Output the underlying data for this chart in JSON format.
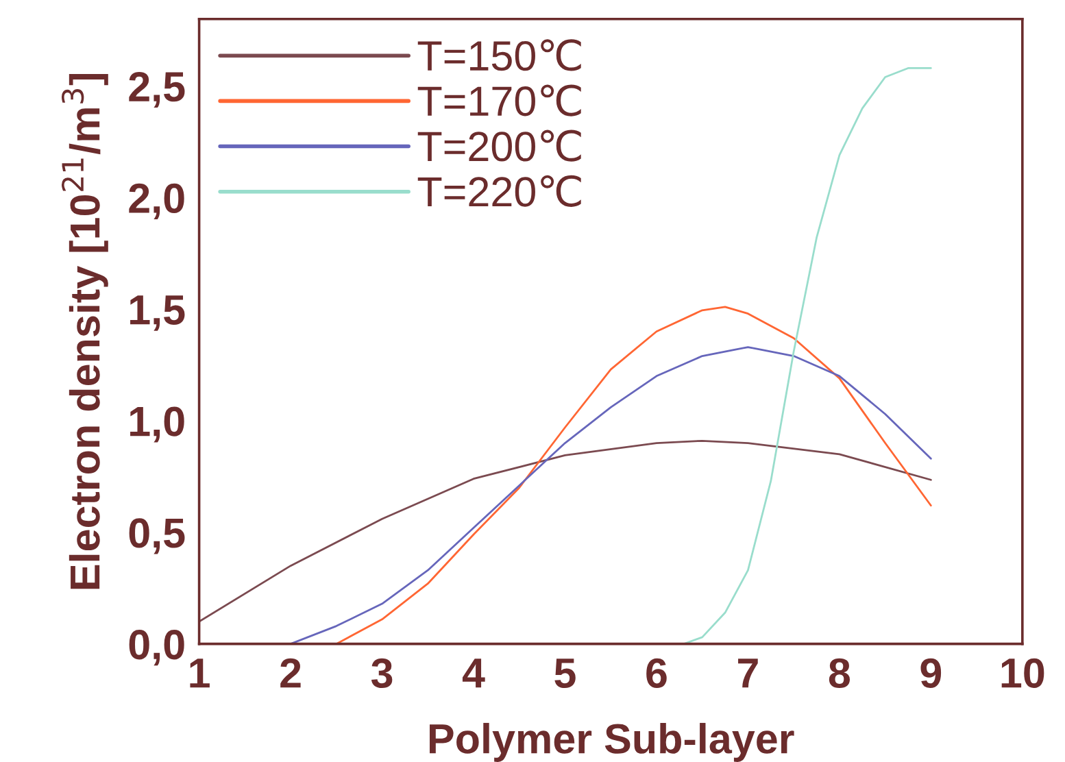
{
  "chart_data": {
    "type": "line",
    "xlabel": "Polymer Sub-layer",
    "ylabel": "Electron density [10$^{21}$/m$^{3}$]",
    "xlim": [
      1,
      10
    ],
    "xticks": [
      1,
      2,
      3,
      4,
      5,
      6,
      7,
      8,
      9,
      10
    ],
    "ylim": [
      0,
      2.8
    ],
    "yticks": [
      {
        "value": 0,
        "label": "0,0"
      },
      {
        "value": 0.5,
        "label": "0,5"
      },
      {
        "value": 1.0,
        "label": "1,0"
      },
      {
        "value": 1.5,
        "label": "1,5"
      },
      {
        "value": 2.0,
        "label": "2,0"
      },
      {
        "value": 2.5,
        "label": "2,5"
      }
    ],
    "grid": false,
    "legend": "top left",
    "marker": "none",
    "line_style": "solid",
    "series": [
      {
        "name": "T=150℃",
        "color": "#7b4a50",
        "x": [
          1,
          2,
          3,
          4,
          5,
          6,
          6.5,
          7,
          8,
          9
        ],
        "values": [
          0.1,
          0.35,
          0.56,
          0.74,
          0.845,
          0.9,
          0.91,
          0.9,
          0.85,
          0.735
        ]
      },
      {
        "name": "T=170℃",
        "color": "#ff6633",
        "x": [
          1,
          2,
          2.5,
          3,
          3.5,
          4,
          4.5,
          5,
          5.5,
          6,
          6.5,
          6.75,
          7,
          7.5,
          8,
          8.5,
          9
        ],
        "values": [
          0,
          0,
          0,
          0.11,
          0.27,
          0.49,
          0.7,
          0.97,
          1.23,
          1.4,
          1.495,
          1.51,
          1.48,
          1.37,
          1.19,
          0.9,
          0.62
        ]
      },
      {
        "name": "T=200℃",
        "color": "#6666bb",
        "x": [
          1,
          2,
          2.5,
          3,
          3.5,
          4,
          4.5,
          5,
          5.5,
          6,
          6.5,
          7,
          7.5,
          8,
          8.5,
          9
        ],
        "values": [
          0,
          0,
          0.08,
          0.18,
          0.33,
          0.52,
          0.71,
          0.9,
          1.06,
          1.2,
          1.29,
          1.33,
          1.29,
          1.2,
          1.03,
          0.83
        ]
      },
      {
        "name": "T=220℃",
        "color": "#99ddcc",
        "x": [
          1,
          6.3,
          6.5,
          6.75,
          7,
          7.25,
          7.5,
          7.75,
          8,
          8.25,
          8.5,
          8.75,
          9
        ],
        "values": [
          0,
          0,
          0.03,
          0.14,
          0.33,
          0.73,
          1.31,
          1.82,
          2.19,
          2.4,
          2.54,
          2.58,
          2.58
        ]
      }
    ]
  }
}
